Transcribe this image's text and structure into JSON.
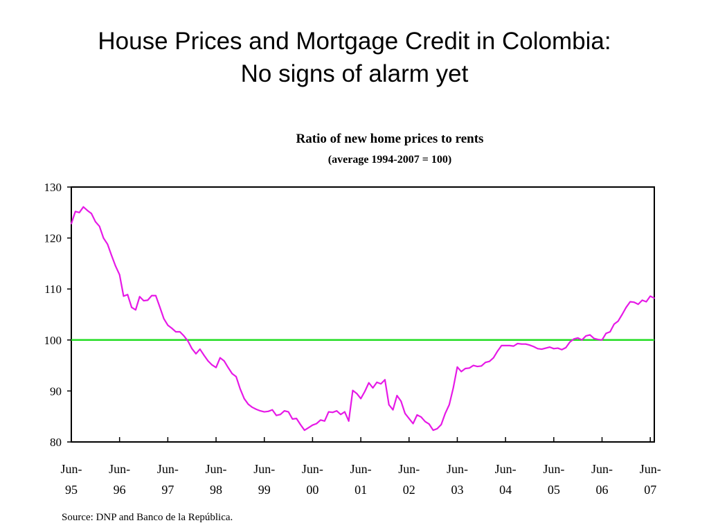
{
  "slide": {
    "title_line1": "House Prices and Mortgage Credit in Colombia:",
    "title_line2": "No signs of alarm yet",
    "source": "Source: DNP and Banco de la República."
  },
  "chart_data": {
    "type": "line",
    "title": "Ratio of new home prices to rents",
    "subtitle": "(average 1994-2007 = 100)",
    "xlabel": "",
    "ylabel": "",
    "ylim": [
      80,
      130
    ],
    "yticks": [
      80,
      90,
      100,
      110,
      120,
      130
    ],
    "x_tick_labels": [
      {
        "line1": "Jun-",
        "line2": "95"
      },
      {
        "line1": "Jun-",
        "line2": "96"
      },
      {
        "line1": "Jun-",
        "line2": "97"
      },
      {
        "line1": "Jun-",
        "line2": "98"
      },
      {
        "line1": "Jun-",
        "line2": "99"
      },
      {
        "line1": "Jun-",
        "line2": "00"
      },
      {
        "line1": "Jun-",
        "line2": "01"
      },
      {
        "line1": "Jun-",
        "line2": "02"
      },
      {
        "line1": "Jun-",
        "line2": "03"
      },
      {
        "line1": "Jun-",
        "line2": "04"
      },
      {
        "line1": "Jun-",
        "line2": "05"
      },
      {
        "line1": "Jun-",
        "line2": "06"
      },
      {
        "line1": "Jun-",
        "line2": "07"
      }
    ],
    "x_start": "1995-06",
    "x_end": "2007-07",
    "reference_line": {
      "value": 100,
      "color": "#22dd22"
    },
    "series": [
      {
        "color": "#e619e6",
        "points": [
          [
            "1995-06",
            122.8
          ],
          [
            "1995-07",
            125.2
          ],
          [
            "1995-08",
            125.0
          ],
          [
            "1995-09",
            126.1
          ],
          [
            "1995-10",
            125.4
          ],
          [
            "1995-11",
            124.8
          ],
          [
            "1995-12",
            123.2
          ],
          [
            "1996-01",
            122.3
          ],
          [
            "1996-02",
            120.0
          ],
          [
            "1996-03",
            118.8
          ],
          [
            "1996-04",
            116.6
          ],
          [
            "1996-05",
            114.5
          ],
          [
            "1996-06",
            112.8
          ],
          [
            "1996-07",
            108.6
          ],
          [
            "1996-08",
            108.9
          ],
          [
            "1996-09",
            106.4
          ],
          [
            "1996-10",
            105.9
          ],
          [
            "1996-11",
            108.5
          ],
          [
            "1996-12",
            107.7
          ],
          [
            "1997-01",
            107.8
          ],
          [
            "1997-02",
            108.7
          ],
          [
            "1997-03",
            108.7
          ],
          [
            "1997-04",
            106.5
          ],
          [
            "1997-05",
            104.2
          ],
          [
            "1997-06",
            102.9
          ],
          [
            "1997-07",
            102.3
          ],
          [
            "1997-08",
            101.6
          ],
          [
            "1997-09",
            101.6
          ],
          [
            "1997-10",
            100.8
          ],
          [
            "1997-11",
            99.8
          ],
          [
            "1997-12",
            98.3
          ],
          [
            "1998-01",
            97.3
          ],
          [
            "1998-02",
            98.2
          ],
          [
            "1998-03",
            97.0
          ],
          [
            "1998-04",
            95.9
          ],
          [
            "1998-05",
            95.1
          ],
          [
            "1998-06",
            94.6
          ],
          [
            "1998-07",
            96.5
          ],
          [
            "1998-08",
            95.9
          ],
          [
            "1998-09",
            94.6
          ],
          [
            "1998-10",
            93.4
          ],
          [
            "1998-11",
            92.8
          ],
          [
            "1998-12",
            90.4
          ],
          [
            "1999-01",
            88.5
          ],
          [
            "1999-02",
            87.4
          ],
          [
            "1999-03",
            86.8
          ],
          [
            "1999-04",
            86.4
          ],
          [
            "1999-05",
            86.1
          ],
          [
            "1999-06",
            85.9
          ],
          [
            "1999-07",
            86.0
          ],
          [
            "1999-08",
            86.3
          ],
          [
            "1999-09",
            85.2
          ],
          [
            "1999-10",
            85.4
          ],
          [
            "1999-11",
            86.1
          ],
          [
            "1999-12",
            85.9
          ],
          [
            "2000-01",
            84.5
          ],
          [
            "2000-02",
            84.6
          ],
          [
            "2000-03",
            83.4
          ],
          [
            "2000-04",
            82.3
          ],
          [
            "2000-05",
            82.8
          ],
          [
            "2000-06",
            83.3
          ],
          [
            "2000-07",
            83.6
          ],
          [
            "2000-08",
            84.3
          ],
          [
            "2000-09",
            84.1
          ],
          [
            "2000-10",
            85.9
          ],
          [
            "2000-11",
            85.8
          ],
          [
            "2000-12",
            86.1
          ],
          [
            "2001-01",
            85.4
          ],
          [
            "2001-02",
            85.9
          ],
          [
            "2001-03",
            84.1
          ],
          [
            "2001-04",
            90.1
          ],
          [
            "2001-05",
            89.5
          ],
          [
            "2001-06",
            88.5
          ],
          [
            "2001-07",
            89.9
          ],
          [
            "2001-08",
            91.6
          ],
          [
            "2001-09",
            90.6
          ],
          [
            "2001-10",
            91.7
          ],
          [
            "2001-11",
            91.4
          ],
          [
            "2001-12",
            92.2
          ],
          [
            "2002-01",
            87.3
          ],
          [
            "2002-02",
            86.3
          ],
          [
            "2002-03",
            89.1
          ],
          [
            "2002-04",
            88.0
          ],
          [
            "2002-05",
            85.6
          ],
          [
            "2002-06",
            84.6
          ],
          [
            "2002-07",
            83.6
          ],
          [
            "2002-08",
            85.3
          ],
          [
            "2002-09",
            84.9
          ],
          [
            "2002-10",
            84.0
          ],
          [
            "2002-11",
            83.5
          ],
          [
            "2002-12",
            82.3
          ],
          [
            "2003-01",
            82.6
          ],
          [
            "2003-02",
            83.4
          ],
          [
            "2003-03",
            85.6
          ],
          [
            "2003-04",
            87.3
          ],
          [
            "2003-05",
            90.6
          ],
          [
            "2003-06",
            94.7
          ],
          [
            "2003-07",
            93.8
          ],
          [
            "2003-08",
            94.4
          ],
          [
            "2003-09",
            94.5
          ],
          [
            "2003-10",
            95.0
          ],
          [
            "2003-11",
            94.8
          ],
          [
            "2003-12",
            94.9
          ],
          [
            "2004-01",
            95.6
          ],
          [
            "2004-02",
            95.8
          ],
          [
            "2004-03",
            96.5
          ],
          [
            "2004-04",
            97.8
          ],
          [
            "2004-05",
            98.9
          ],
          [
            "2004-06",
            98.9
          ],
          [
            "2004-07",
            98.9
          ],
          [
            "2004-08",
            98.8
          ],
          [
            "2004-09",
            99.3
          ],
          [
            "2004-10",
            99.2
          ],
          [
            "2004-11",
            99.2
          ],
          [
            "2004-12",
            99.0
          ],
          [
            "2005-01",
            98.7
          ],
          [
            "2005-02",
            98.3
          ],
          [
            "2005-03",
            98.2
          ],
          [
            "2005-04",
            98.4
          ],
          [
            "2005-05",
            98.6
          ],
          [
            "2005-06",
            98.3
          ],
          [
            "2005-07",
            98.4
          ],
          [
            "2005-08",
            98.1
          ],
          [
            "2005-09",
            98.5
          ],
          [
            "2005-10",
            99.6
          ],
          [
            "2005-11",
            100.2
          ],
          [
            "2005-12",
            100.4
          ],
          [
            "2006-01",
            100.0
          ],
          [
            "2006-02",
            100.8
          ],
          [
            "2006-03",
            101.0
          ],
          [
            "2006-04",
            100.3
          ],
          [
            "2006-05",
            100.1
          ],
          [
            "2006-06",
            100.0
          ],
          [
            "2006-07",
            101.3
          ],
          [
            "2006-08",
            101.6
          ],
          [
            "2006-09",
            103.1
          ],
          [
            "2006-10",
            103.7
          ],
          [
            "2006-11",
            105.0
          ],
          [
            "2006-12",
            106.4
          ],
          [
            "2007-01",
            107.5
          ],
          [
            "2007-02",
            107.4
          ],
          [
            "2007-03",
            107.0
          ],
          [
            "2007-04",
            107.8
          ],
          [
            "2007-05",
            107.5
          ],
          [
            "2007-06",
            108.6
          ],
          [
            "2007-07",
            108.2
          ]
        ]
      }
    ]
  }
}
